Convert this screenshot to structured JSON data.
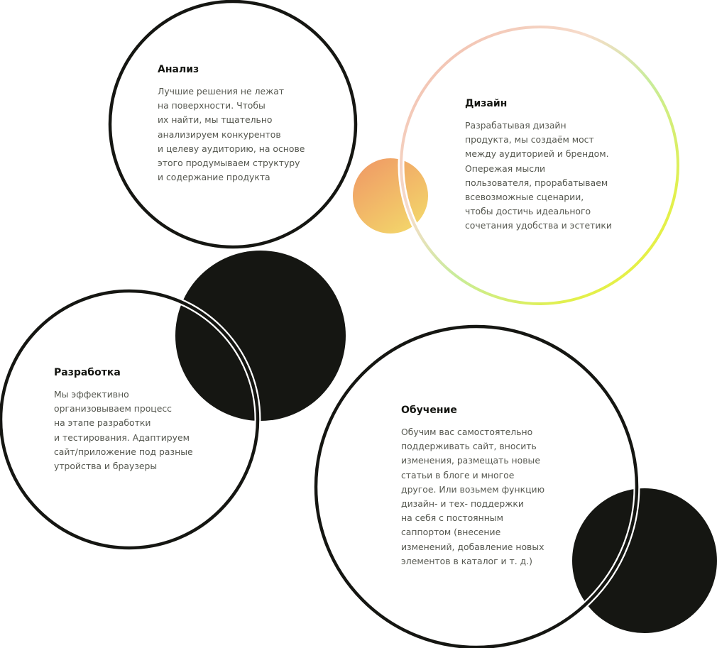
{
  "colors": {
    "ink": "#151612",
    "ring": "#151612",
    "text": "#55574f",
    "gradient_orange": "#f0a56a",
    "gradient_yellow": "#e9f03a",
    "gradient_green": "#b4e87a",
    "gradient_pink": "#f1c6b8"
  },
  "sections": {
    "analysis": {
      "title": "Анализ",
      "text": "Лучшие решения не лежат\nна поверхности. Чтобы\nих найти, мы тщательно\nанализируем конкурентов\nи целеву аудиторию, на основе\nэтого продумываем структуру\nи содержание продукта"
    },
    "design": {
      "title": "Дизайн",
      "text": "Разрабатывая дизайн\nпродукта, мы создаём мост\nмежду аудиторией и брендом.\nОпережая мысли\nпользователя, прорабатываем\nвсевозможные сценарии,\nчтобы достичь идеального\nсочетания удобства и эстетики"
    },
    "development": {
      "title": "Разработка",
      "text": "Мы эффективно\nорганизовываем процесс\nна этапе разработки\nи тестирования. Адаптируем\nсайт/приложение под разные\nутройства и браузеры"
    },
    "learning": {
      "title": "Обучение",
      "text": "Обучим вас самостоятельно\nподдерживать сайт, вносить\nизменения, размещать новые\nстатьи в блоге и многое\nдругое. Или возьмем функцию\nдизайн- и тех- поддержки\nна себя с постоянным\nсаппортом (внесение\nизменений, добавление новых\nэлементов в каталог и т. д.)"
    }
  }
}
